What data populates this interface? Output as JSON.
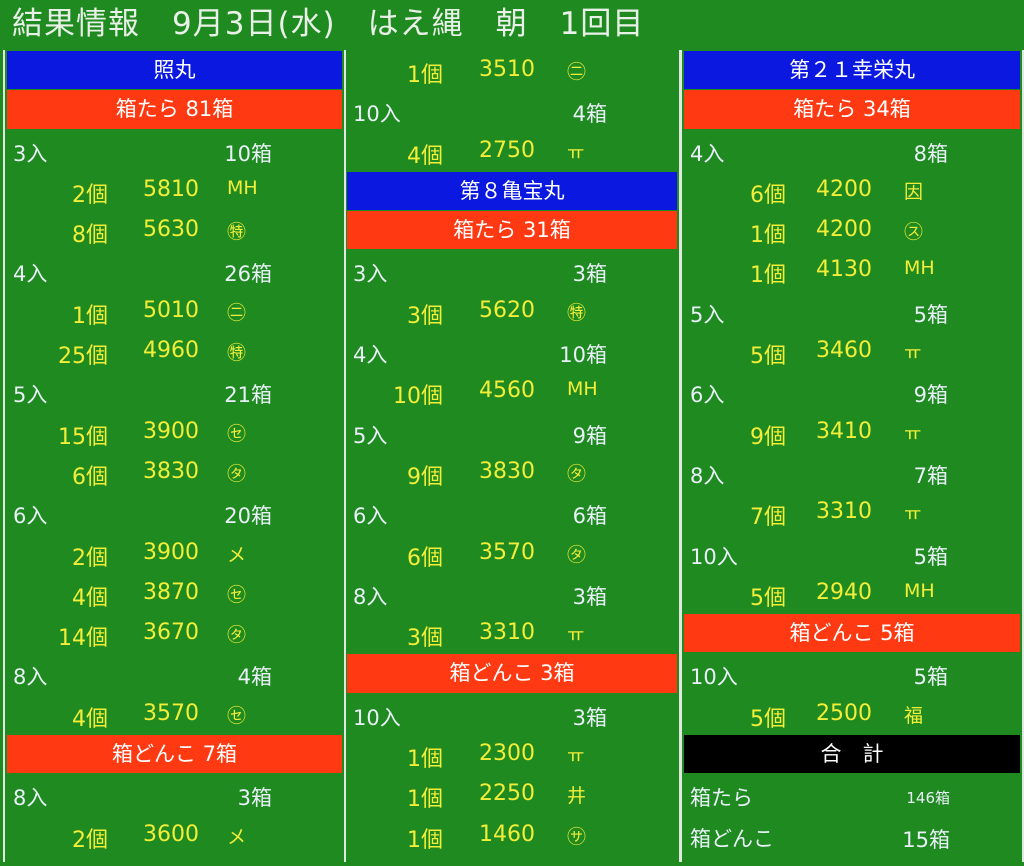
{
  "title": "結果情報　9月3日(水)　はえ縄　朝　1回目",
  "columns": [
    [
      {
        "t": "ship",
        "label": "照丸"
      },
      {
        "t": "cat",
        "label": "箱たら 81箱"
      },
      {
        "t": "hdr",
        "a": "3入",
        "b": "10箱"
      },
      {
        "t": "item",
        "q": "2個",
        "p": "5810",
        "m": "MH"
      },
      {
        "t": "item",
        "q": "8個",
        "p": "5630",
        "m": "㊕"
      },
      {
        "t": "hdr",
        "a": "4入",
        "b": "26箱"
      },
      {
        "t": "item",
        "q": "1個",
        "p": "5010",
        "m": "㊁"
      },
      {
        "t": "item",
        "q": "25個",
        "p": "4960",
        "m": "㊕"
      },
      {
        "t": "hdr",
        "a": "5入",
        "b": "21箱"
      },
      {
        "t": "item",
        "q": "15個",
        "p": "3900",
        "m": "㋝"
      },
      {
        "t": "item",
        "q": "6個",
        "p": "3830",
        "m": "㋟"
      },
      {
        "t": "hdr",
        "a": "6入",
        "b": "20箱"
      },
      {
        "t": "item",
        "q": "2個",
        "p": "3900",
        "m": "メ"
      },
      {
        "t": "item",
        "q": "4個",
        "p": "3870",
        "m": "㋝"
      },
      {
        "t": "item",
        "q": "14個",
        "p": "3670",
        "m": "㋟"
      },
      {
        "t": "hdr",
        "a": "8入",
        "b": "4箱"
      },
      {
        "t": "item",
        "q": "4個",
        "p": "3570",
        "m": "㋝"
      },
      {
        "t": "cat",
        "label": "箱どんこ 7箱"
      },
      {
        "t": "hdr",
        "a": "8入",
        "b": "3箱"
      },
      {
        "t": "item",
        "q": "2個",
        "p": "3600",
        "m": "メ"
      }
    ],
    [
      {
        "t": "item",
        "q": "1個",
        "p": "3510",
        "m": "㊁"
      },
      {
        "t": "hdr",
        "a": "10入",
        "b": "4箱"
      },
      {
        "t": "item",
        "q": "4個",
        "p": "2750",
        "m": "ㅠ"
      },
      {
        "t": "ship",
        "label": "第８亀宝丸"
      },
      {
        "t": "cat",
        "label": "箱たら 31箱"
      },
      {
        "t": "hdr",
        "a": "3入",
        "b": "3箱"
      },
      {
        "t": "item",
        "q": "3個",
        "p": "5620",
        "m": "㊕"
      },
      {
        "t": "hdr",
        "a": "4入",
        "b": "10箱"
      },
      {
        "t": "item",
        "q": "10個",
        "p": "4560",
        "m": "MH"
      },
      {
        "t": "hdr",
        "a": "5入",
        "b": "9箱"
      },
      {
        "t": "item",
        "q": "9個",
        "p": "3830",
        "m": "㋟"
      },
      {
        "t": "hdr",
        "a": "6入",
        "b": "6箱"
      },
      {
        "t": "item",
        "q": "6個",
        "p": "3570",
        "m": "㋟"
      },
      {
        "t": "hdr",
        "a": "8入",
        "b": "3箱"
      },
      {
        "t": "item",
        "q": "3個",
        "p": "3310",
        "m": "ㅠ"
      },
      {
        "t": "cat",
        "label": "箱どんこ 3箱"
      },
      {
        "t": "hdr",
        "a": "10入",
        "b": "3箱"
      },
      {
        "t": "item",
        "q": "1個",
        "p": "2300",
        "m": "ㅠ"
      },
      {
        "t": "item",
        "q": "1個",
        "p": "2250",
        "m": "井"
      },
      {
        "t": "item",
        "q": "1個",
        "p": "1460",
        "m": "㋚"
      }
    ],
    [
      {
        "t": "ship",
        "label": "第２１幸栄丸"
      },
      {
        "t": "cat",
        "label": "箱たら 34箱"
      },
      {
        "t": "hdr",
        "a": "4入",
        "b": "8箱"
      },
      {
        "t": "item",
        "q": "6個",
        "p": "4200",
        "m": "因"
      },
      {
        "t": "item",
        "q": "1個",
        "p": "4200",
        "m": "㋜"
      },
      {
        "t": "item",
        "q": "1個",
        "p": "4130",
        "m": "MH"
      },
      {
        "t": "hdr",
        "a": "5入",
        "b": "5箱"
      },
      {
        "t": "item",
        "q": "5個",
        "p": "3460",
        "m": "ㅠ"
      },
      {
        "t": "hdr",
        "a": "6入",
        "b": "9箱"
      },
      {
        "t": "item",
        "q": "9個",
        "p": "3410",
        "m": "ㅠ"
      },
      {
        "t": "hdr",
        "a": "8入",
        "b": "7箱"
      },
      {
        "t": "item",
        "q": "7個",
        "p": "3310",
        "m": "ㅠ"
      },
      {
        "t": "hdr",
        "a": "10入",
        "b": "5箱"
      },
      {
        "t": "item",
        "q": "5個",
        "p": "2940",
        "m": "MH"
      },
      {
        "t": "cat",
        "label": "箱どんこ 5箱"
      },
      {
        "t": "hdr",
        "a": "10入",
        "b": "5箱"
      },
      {
        "t": "item",
        "q": "5個",
        "p": "2500",
        "m": "福"
      },
      {
        "t": "total",
        "label": "合　計"
      },
      {
        "t": "sum",
        "a": "箱たら",
        "b": "146箱",
        "small": true
      },
      {
        "t": "sum",
        "a": "箱どんこ",
        "b": "15箱"
      }
    ]
  ]
}
